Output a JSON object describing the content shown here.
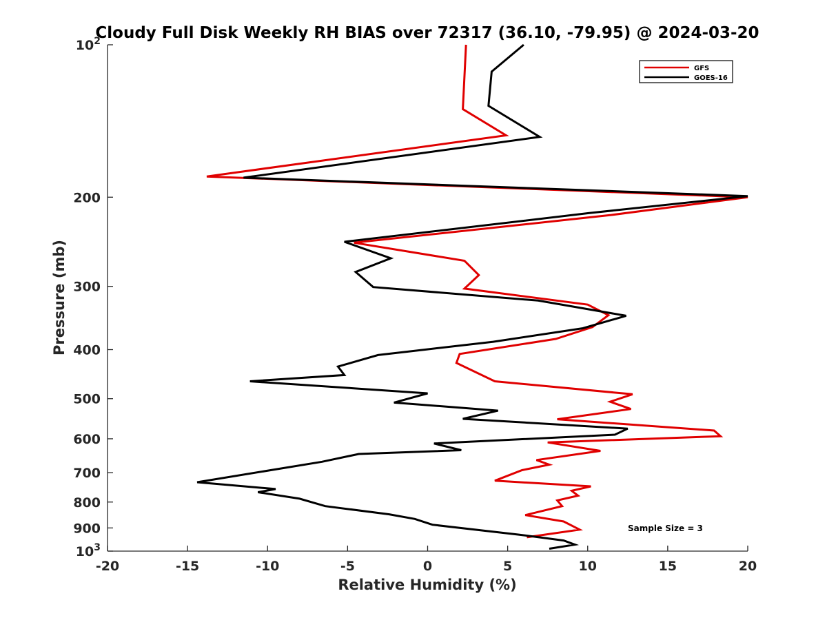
{
  "chart_data": {
    "type": "line",
    "title": "Cloudy Full Disk Weekly RH BIAS over 72317 (36.10, -79.95) @ 2024-03-20",
    "xlabel": "Relative Humidity (%)",
    "ylabel": "Pressure (mb)",
    "xlim": [
      -20,
      20
    ],
    "ylim": [
      1000,
      100
    ],
    "yscale": "log",
    "x_ticks": [
      -20,
      -15,
      -10,
      -5,
      0,
      5,
      10,
      15,
      20
    ],
    "y_ticks": [
      {
        "value": 100,
        "base": "10",
        "exp": "2"
      },
      {
        "value": 200,
        "label": "200"
      },
      {
        "value": 300,
        "label": "300"
      },
      {
        "value": 400,
        "label": "400"
      },
      {
        "value": 500,
        "label": "500"
      },
      {
        "value": 600,
        "label": "600"
      },
      {
        "value": 700,
        "label": "700"
      },
      {
        "value": 800,
        "label": "800"
      },
      {
        "value": 900,
        "label": "900"
      },
      {
        "value": 1000,
        "base": "10",
        "exp": "3"
      }
    ],
    "grid": false,
    "legend_position": "top-right",
    "annotation": "Sample Size = 3",
    "series": [
      {
        "name": "GFS",
        "color": "#e00000",
        "points": [
          [
            2.4,
            100
          ],
          [
            2.2,
            134
          ],
          [
            4.9,
            151
          ],
          [
            -13.8,
            182
          ],
          [
            20.0,
            200
          ],
          [
            11.4,
            217
          ],
          [
            -4.6,
            246
          ],
          [
            2.3,
            267
          ],
          [
            3.2,
            285
          ],
          [
            2.3,
            303
          ],
          [
            10.0,
            326
          ],
          [
            11.3,
            342
          ],
          [
            10.3,
            361
          ],
          [
            8.0,
            381
          ],
          [
            2.0,
            408
          ],
          [
            1.8,
            425
          ],
          [
            4.2,
            462
          ],
          [
            12.8,
            490
          ],
          [
            11.4,
            507
          ],
          [
            12.7,
            524
          ],
          [
            8.1,
            549
          ],
          [
            17.9,
            578
          ],
          [
            18.3,
            593
          ],
          [
            7.5,
            610
          ],
          [
            10.8,
            634
          ],
          [
            6.8,
            661
          ],
          [
            7.6,
            675
          ],
          [
            5.9,
            692
          ],
          [
            4.2,
            726
          ],
          [
            10.2,
            745
          ],
          [
            9.0,
            760
          ],
          [
            9.4,
            777
          ],
          [
            8.1,
            794
          ],
          [
            8.4,
            815
          ],
          [
            6.1,
            849
          ],
          [
            8.5,
            874
          ],
          [
            9.5,
            907
          ],
          [
            6.2,
            939
          ]
        ]
      },
      {
        "name": "GOES-16",
        "color": "#000000",
        "points": [
          [
            6.0,
            100
          ],
          [
            4.0,
            113
          ],
          [
            3.8,
            132
          ],
          [
            7.0,
            152
          ],
          [
            -11.5,
            183
          ],
          [
            20.0,
            199
          ],
          [
            10.1,
            215
          ],
          [
            -5.2,
            245
          ],
          [
            -2.3,
            264
          ],
          [
            -4.5,
            281
          ],
          [
            -3.4,
            301
          ],
          [
            6.9,
            320
          ],
          [
            12.4,
            343
          ],
          [
            9.7,
            363
          ],
          [
            4.1,
            386
          ],
          [
            -3.1,
            410
          ],
          [
            -5.6,
            432
          ],
          [
            -5.2,
            449
          ],
          [
            -11.1,
            462
          ],
          [
            0.0,
            488
          ],
          [
            -2.1,
            509
          ],
          [
            4.4,
            528
          ],
          [
            2.2,
            548
          ],
          [
            12.5,
            573
          ],
          [
            11.7,
            589
          ],
          [
            0.4,
            613
          ],
          [
            2.1,
            632
          ],
          [
            -4.3,
            643
          ],
          [
            -6.6,
            666
          ],
          [
            -14.4,
            731
          ],
          [
            -9.5,
            754
          ],
          [
            -10.6,
            765
          ],
          [
            -8.0,
            788
          ],
          [
            -6.4,
            815
          ],
          [
            -2.4,
            846
          ],
          [
            -0.8,
            864
          ],
          [
            0.3,
            887
          ],
          [
            5.7,
            928
          ],
          [
            8.5,
            953
          ],
          [
            9.2,
            971
          ],
          [
            7.6,
            989
          ]
        ]
      }
    ]
  }
}
